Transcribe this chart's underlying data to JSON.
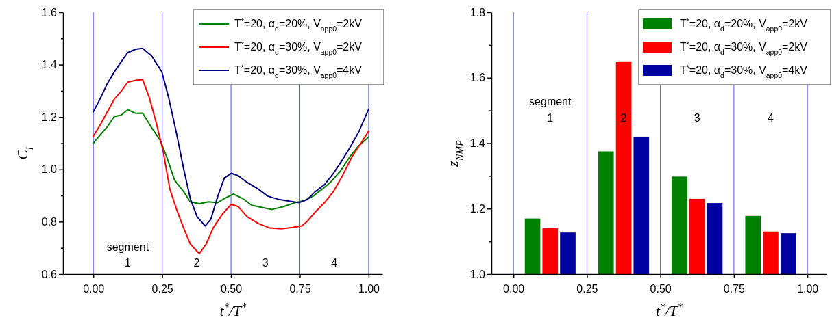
{
  "chart_data": [
    {
      "type": "line",
      "xlabel": "t$^{*}$/T$^{*}$",
      "ylabel": "C$_{l}$",
      "xlim": [
        -0.11,
        1.05
      ],
      "xticks": [
        {
          "value": 0,
          "label": "0.00"
        },
        {
          "value": 0.25,
          "label": "0.25"
        },
        {
          "value": 0.5,
          "label": "0.50"
        },
        {
          "value": 0.75,
          "label": "0.75"
        },
        {
          "value": 1,
          "label": "1.00"
        }
      ],
      "ylim": [
        0.6,
        1.6
      ],
      "yticks": [
        0.6,
        {
          "value": 0.7,
          "label": null
        },
        0.8,
        {
          "value": 0.9,
          "label": null
        },
        {
          "value": 1.0,
          "label": "1.0"
        },
        {
          "value": 1.1,
          "label": null
        },
        1.2,
        {
          "value": 1.3,
          "label": null
        },
        1.4,
        {
          "value": 1.5,
          "label": null
        },
        1.6
      ],
      "legend": "top right",
      "grid": false,
      "ref_lines": [
        {
          "axis": "x",
          "value": 0,
          "color": "#4d4dff"
        },
        {
          "axis": "x",
          "value": 0.25,
          "color": "#4d4dff"
        },
        {
          "axis": "x",
          "value": 0.5,
          "color": "#4d4dff"
        },
        {
          "axis": "x",
          "value": 0.75,
          "color": "#4d4dff"
        },
        {
          "axis": "x",
          "value": 1,
          "color": "#4d4dff"
        }
      ],
      "annotations": [
        "segment",
        "1",
        "2",
        "3",
        "4"
      ],
      "series": [
        {
          "name": "T$^{*}$=20, α$_{d}$=20%, V$_{app0}$=2kV",
          "color": "#008000",
          "x": [
            0,
            0.026,
            0.051,
            0.076,
            0.101,
            0.125,
            0.154,
            0.179,
            0.212,
            0.245,
            0.27,
            0.295,
            0.328,
            0.352,
            0.385,
            0.418,
            0.452,
            0.476,
            0.509,
            0.542,
            0.575,
            0.616,
            0.649,
            0.691,
            0.732,
            0.765,
            0.798,
            0.831,
            0.864,
            0.897,
            0.93,
            0.963,
            1.0
          ],
          "values": [
            1.1,
            1.133,
            1.163,
            1.202,
            1.207,
            1.228,
            1.214,
            1.215,
            1.159,
            1.107,
            1.037,
            0.959,
            0.915,
            0.876,
            0.869,
            0.876,
            0.873,
            0.889,
            0.906,
            0.889,
            0.863,
            0.854,
            0.847,
            0.858,
            0.873,
            0.88,
            0.898,
            0.924,
            0.954,
            0.993,
            1.046,
            1.089,
            1.124
          ]
        },
        {
          "name": "T$^{*}$=20, α$_{d}$=30%, V$_{app0}$=2kV",
          "color": "#ff0000",
          "x": [
            0,
            0.026,
            0.051,
            0.076,
            0.101,
            0.125,
            0.154,
            0.179,
            0.204,
            0.229,
            0.253,
            0.278,
            0.303,
            0.328,
            0.352,
            0.385,
            0.41,
            0.435,
            0.468,
            0.501,
            0.526,
            0.559,
            0.6,
            0.641,
            0.682,
            0.724,
            0.757,
            0.777,
            0.806,
            0.839,
            0.872,
            0.905,
            0.938,
            0.971,
            1.0
          ],
          "values": [
            1.127,
            1.172,
            1.22,
            1.268,
            1.298,
            1.333,
            1.34,
            1.343,
            1.272,
            1.176,
            1.072,
            0.924,
            0.845,
            0.776,
            0.715,
            0.678,
            0.715,
            0.776,
            0.828,
            0.867,
            0.858,
            0.819,
            0.793,
            0.776,
            0.773,
            0.778,
            0.784,
            0.802,
            0.837,
            0.872,
            0.915,
            0.976,
            1.046,
            1.098,
            1.146
          ]
        },
        {
          "name": "T$^{*}$=20, α$_{d}$=30%, V$_{app0}$=4kV",
          "color": "#000080",
          "x": [
            0,
            0.026,
            0.051,
            0.076,
            0.101,
            0.125,
            0.154,
            0.179,
            0.212,
            0.249,
            0.274,
            0.303,
            0.328,
            0.352,
            0.377,
            0.406,
            0.427,
            0.452,
            0.476,
            0.501,
            0.526,
            0.559,
            0.6,
            0.633,
            0.674,
            0.715,
            0.748,
            0.777,
            0.806,
            0.839,
            0.872,
            0.897,
            0.93,
            0.963,
            1.0
          ],
          "values": [
            1.22,
            1.272,
            1.328,
            1.372,
            1.411,
            1.446,
            1.459,
            1.462,
            1.433,
            1.372,
            1.272,
            1.133,
            1.002,
            0.889,
            0.819,
            0.784,
            0.81,
            0.898,
            0.967,
            0.985,
            0.976,
            0.95,
            0.924,
            0.898,
            0.885,
            0.878,
            0.873,
            0.885,
            0.915,
            0.941,
            0.985,
            1.024,
            1.08,
            1.141,
            1.23
          ]
        }
      ]
    },
    {
      "type": "bar",
      "xlabel": "t$^{*}$/T$^{*}$",
      "ylabel": "z$_{NMP}$",
      "xlim": [
        -0.075,
        1.065
      ],
      "xticks": [
        {
          "value": 0,
          "label": "0.00"
        },
        {
          "value": 0.25,
          "label": "0.25"
        },
        {
          "value": 0.5,
          "label": "0.50"
        },
        {
          "value": 0.75,
          "label": "0.75"
        },
        {
          "value": 1,
          "label": "1.00"
        }
      ],
      "ylim": [
        1.0,
        1.8
      ],
      "yticks": [
        {
          "value": 1.0,
          "label": "1.0"
        },
        {
          "value": 1.1,
          "label": null
        },
        1.2,
        {
          "value": 1.3,
          "label": null
        },
        1.4,
        {
          "value": 1.5,
          "label": null
        },
        1.6,
        {
          "value": 1.7,
          "label": null
        },
        1.8
      ],
      "legend": "top right",
      "grid": false,
      "ref_lines": [
        {
          "axis": "x",
          "value": 0,
          "color": "#4d4dff"
        },
        {
          "axis": "x",
          "value": 0.25,
          "color": "#4d4dff"
        },
        {
          "axis": "x",
          "value": 0.5,
          "color": "#4d4dff"
        },
        {
          "axis": "x",
          "value": 0.75,
          "color": "#4d4dff"
        },
        {
          "axis": "x",
          "value": 1,
          "color": "#4d4dff"
        }
      ],
      "annotations": [
        "segment",
        "1",
        "2",
        "3",
        "4"
      ],
      "series": [
        {
          "name": "T$^{*}$=20, α$_{d}$=20%, V$_{app0}$=2kV",
          "color": "#008000",
          "x": [
            0.065,
            0.315,
            0.565,
            0.815
          ],
          "values": [
            1.17,
            1.375,
            1.298,
            1.178
          ]
        },
        {
          "name": "T$^{*}$=20, α$_{d}$=30%, V$_{app0}$=2kV",
          "color": "#ff0000",
          "x": [
            0.125,
            0.375,
            0.625,
            0.875
          ],
          "values": [
            1.14,
            1.65,
            1.23,
            1.13
          ]
        },
        {
          "name": "T$^{*}$=20, α$_{d}$=30%, V$_{app0}$=4kV",
          "color": "#0000a0",
          "x": [
            0.185,
            0.435,
            0.685,
            0.935
          ],
          "values": [
            1.127,
            1.42,
            1.217,
            1.125
          ]
        }
      ]
    }
  ]
}
